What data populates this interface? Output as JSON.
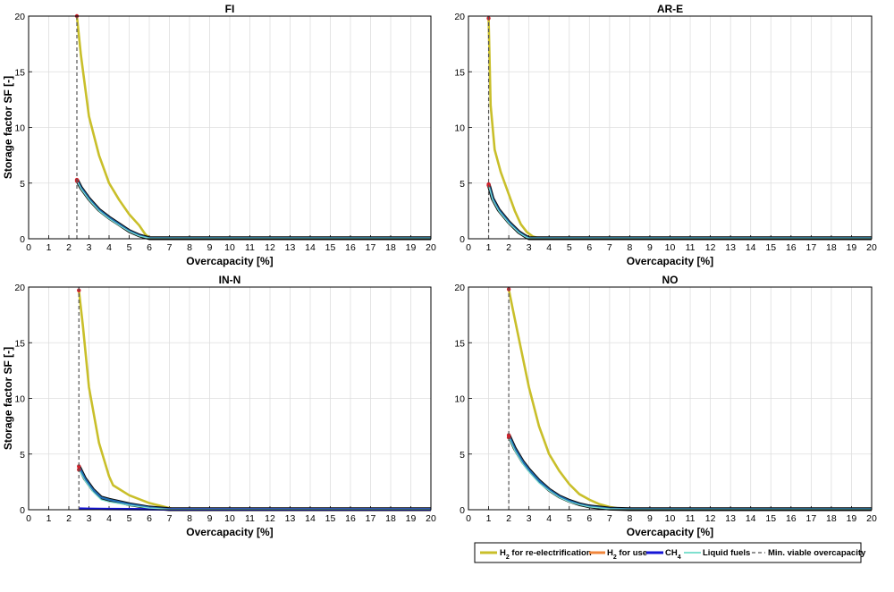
{
  "legend": {
    "h2_reelec": {
      "main": "H",
      "sub": "2",
      "rest": " for re-electrification",
      "color": "#c9bf2a"
    },
    "h2_use": {
      "main": "H",
      "sub": "2",
      "rest": " for use",
      "color": "#f0853a"
    },
    "ch4": {
      "main": "CH",
      "sub": "4",
      "rest": "",
      "color": "#1515d6"
    },
    "liquid": {
      "text": "Liquid fuels",
      "color": "#7fe0cf"
    },
    "min_viable": {
      "text": "Min. viable overcapacity",
      "color": "#555555"
    }
  },
  "chart_data": [
    {
      "type": "line",
      "title": "FI",
      "xlabel": "Overcapacity [%]",
      "ylabel": "Storage factor SF [-]",
      "xlim": [
        0,
        20
      ],
      "ylim": [
        0,
        20
      ],
      "xticks": [
        "0",
        "1",
        "2",
        "3",
        "4",
        "5",
        "6",
        "7",
        "8",
        "9",
        "10",
        "11",
        "12",
        "13",
        "14",
        "15",
        "16",
        "17",
        "18",
        "19",
        "20"
      ],
      "yticks": [
        "0",
        "5",
        "10",
        "15",
        "20"
      ],
      "min_viable_overcapacity": 2.4,
      "series": [
        {
          "name": "H2 for re-electrification",
          "x": [
            2.4,
            2.6,
            3.0,
            3.5,
            4.0,
            4.5,
            5.0,
            5.5,
            5.8,
            6.0,
            6.5,
            20
          ],
          "y": [
            20,
            16.5,
            11.0,
            7.5,
            5.0,
            3.5,
            2.2,
            1.2,
            0.4,
            0.1,
            0.05,
            0.05
          ]
        },
        {
          "name": "H2 for use",
          "x": [
            2.4,
            2.6,
            3.0,
            3.5,
            4.0,
            4.5,
            5.0,
            5.5,
            6.0,
            20
          ],
          "y": [
            5.3,
            4.6,
            3.6,
            2.6,
            1.9,
            1.3,
            0.7,
            0.3,
            0.05,
            0.05
          ]
        },
        {
          "name": "Liquid fuels",
          "x": [
            2.4,
            2.6,
            3.0,
            3.5,
            4.0,
            4.5,
            5.0,
            5.5,
            6.0,
            20
          ],
          "y": [
            5.2,
            4.5,
            3.5,
            2.5,
            1.8,
            1.2,
            0.65,
            0.25,
            0.05,
            0.05
          ]
        }
      ]
    },
    {
      "type": "line",
      "title": "AR-E",
      "xlabel": "Overcapacity [%]",
      "ylabel": "",
      "xlim": [
        0,
        20
      ],
      "ylim": [
        0,
        20
      ],
      "xticks": [
        "0",
        "1",
        "2",
        "3",
        "4",
        "5",
        "6",
        "7",
        "8",
        "9",
        "10",
        "11",
        "12",
        "13",
        "14",
        "15",
        "16",
        "17",
        "18",
        "19",
        "20"
      ],
      "yticks": [
        "0",
        "5",
        "10",
        "15",
        "20"
      ],
      "min_viable_overcapacity": 1.0,
      "series": [
        {
          "name": "H2 for re-electrification",
          "x": [
            1.0,
            1.1,
            1.3,
            1.6,
            2.0,
            2.3,
            2.6,
            2.9,
            3.2,
            3.5,
            20
          ],
          "y": [
            19.8,
            12.0,
            8.0,
            6.0,
            4.0,
            2.5,
            1.3,
            0.6,
            0.2,
            0.05,
            0.05
          ]
        },
        {
          "name": "H2 for use",
          "x": [
            1.0,
            1.2,
            1.5,
            2.0,
            2.5,
            2.8,
            3.0,
            20
          ],
          "y": [
            4.9,
            3.6,
            2.6,
            1.5,
            0.6,
            0.25,
            0.05,
            0.05
          ]
        },
        {
          "name": "Liquid fuels",
          "x": [
            1.0,
            1.2,
            1.5,
            2.0,
            2.5,
            2.8,
            3.0,
            20
          ],
          "y": [
            4.8,
            3.5,
            2.5,
            1.4,
            0.55,
            0.2,
            0.05,
            0.05
          ]
        }
      ]
    },
    {
      "type": "line",
      "title": "IN-N",
      "xlabel": "Overcapacity [%]",
      "ylabel": "Storage factor SF [-]",
      "xlim": [
        0,
        20
      ],
      "ylim": [
        0,
        20
      ],
      "xticks": [
        "0",
        "1",
        "2",
        "3",
        "4",
        "5",
        "6",
        "7",
        "8",
        "9",
        "10",
        "11",
        "12",
        "13",
        "14",
        "15",
        "16",
        "17",
        "18",
        "19",
        "20"
      ],
      "yticks": [
        "0",
        "5",
        "10",
        "15",
        "20"
      ],
      "min_viable_overcapacity": 2.5,
      "series": [
        {
          "name": "H2 for re-electrification",
          "x": [
            2.5,
            2.7,
            3.0,
            3.5,
            4.0,
            4.2,
            5.0,
            6.0,
            7.0,
            7.2,
            20
          ],
          "y": [
            19.7,
            16.5,
            11.0,
            6.0,
            3.0,
            2.2,
            1.3,
            0.6,
            0.15,
            0.05,
            0.05
          ]
        },
        {
          "name": "H2 for use",
          "x": [
            2.5,
            2.8,
            3.2,
            3.6,
            4.0,
            5.0,
            6.0,
            7.0,
            20
          ],
          "y": [
            3.9,
            2.8,
            1.8,
            1.1,
            0.9,
            0.5,
            0.2,
            0.05,
            0.05
          ]
        },
        {
          "name": "CH4",
          "x": [
            2.5,
            3.0,
            4.0,
            5.0,
            6.0,
            7.0,
            20
          ],
          "y": [
            0.1,
            0.08,
            0.06,
            0.05,
            0.04,
            0.03,
            0.03
          ]
        },
        {
          "name": "Liquid fuels",
          "x": [
            2.5,
            2.8,
            3.2,
            3.6,
            4.0,
            5.0,
            6.0,
            7.0,
            20
          ],
          "y": [
            3.6,
            2.6,
            1.6,
            0.9,
            0.7,
            0.4,
            0.15,
            0.05,
            0.05
          ]
        }
      ]
    },
    {
      "type": "line",
      "title": "NO",
      "xlabel": "Overcapacity [%]",
      "ylabel": "",
      "xlim": [
        0,
        20
      ],
      "ylim": [
        0,
        20
      ],
      "xticks": [
        "0",
        "1",
        "2",
        "3",
        "4",
        "5",
        "6",
        "7",
        "8",
        "9",
        "10",
        "11",
        "12",
        "13",
        "14",
        "15",
        "16",
        "17",
        "18",
        "19",
        "20"
      ],
      "yticks": [
        "0",
        "5",
        "10",
        "15",
        "20"
      ],
      "min_viable_overcapacity": 2.0,
      "series": [
        {
          "name": "H2 for re-electrification",
          "x": [
            2.0,
            2.2,
            2.6,
            3.0,
            3.5,
            4.0,
            4.5,
            5.0,
            5.5,
            6.0,
            6.5,
            7.0,
            7.5,
            8.0,
            20
          ],
          "y": [
            19.8,
            18.0,
            14.5,
            11.0,
            7.5,
            5.0,
            3.5,
            2.3,
            1.4,
            0.9,
            0.5,
            0.25,
            0.1,
            0.05,
            0.05
          ]
        },
        {
          "name": "H2 for use",
          "x": [
            2.0,
            2.3,
            2.7,
            3.0,
            3.5,
            4.0,
            4.5,
            5.0,
            5.5,
            6.0,
            7.0,
            8.0,
            20
          ],
          "y": [
            6.7,
            5.5,
            4.3,
            3.6,
            2.6,
            1.8,
            1.2,
            0.8,
            0.5,
            0.3,
            0.1,
            0.05,
            0.05
          ]
        },
        {
          "name": "Liquid fuels",
          "x": [
            2.0,
            2.3,
            2.7,
            3.0,
            3.5,
            4.0,
            4.5,
            5.0,
            5.5,
            6.0,
            7.0,
            8.0,
            20
          ],
          "y": [
            6.5,
            5.3,
            4.1,
            3.4,
            2.4,
            1.7,
            1.1,
            0.7,
            0.45,
            0.25,
            0.08,
            0.04,
            0.04
          ]
        }
      ]
    }
  ]
}
